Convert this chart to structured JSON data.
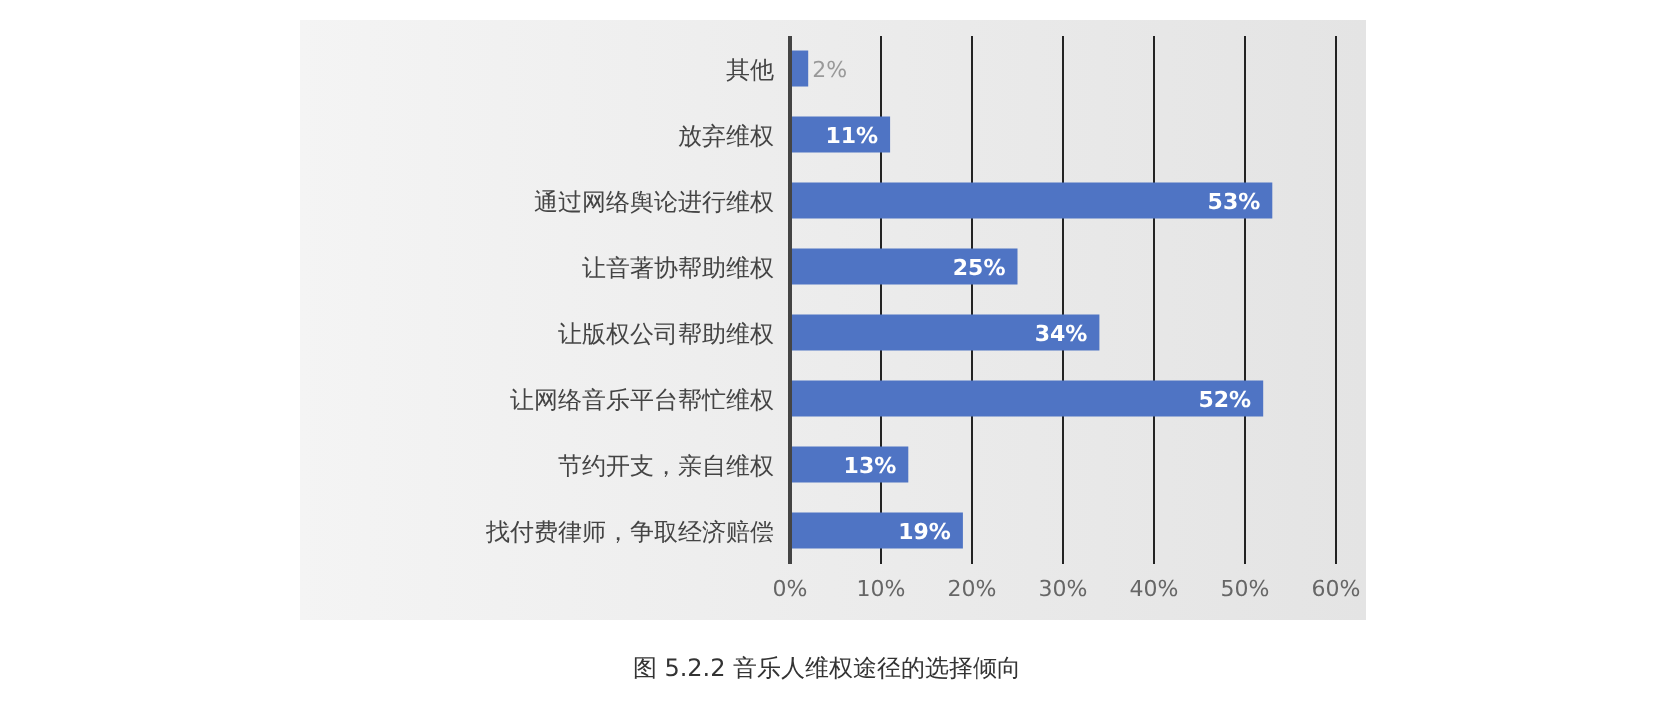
{
  "chart_data": {
    "type": "bar",
    "orientation": "horizontal",
    "title": "图 5.2.2  音乐人维权途径的选择倾向",
    "categories": [
      "其他",
      "放弃维权",
      "通过网络舆论进行维权",
      "让音著协帮助维权",
      "让版权公司帮助维权",
      "让网络音乐平台帮忙维权",
      "节约开支，亲自维权",
      "找付费律师，争取经济赔偿"
    ],
    "values": [
      2,
      11,
      53,
      25,
      34,
      52,
      13,
      19
    ],
    "value_labels": [
      "2%",
      "11%",
      "53%",
      "25%",
      "34%",
      "52%",
      "13%",
      "19%"
    ],
    "color": "#4f74c4",
    "xlim": [
      0,
      60
    ],
    "xticks": [
      {
        "value": 0,
        "label": "0%"
      },
      {
        "value": 10,
        "label": "10%"
      },
      {
        "value": 20,
        "label": "20%"
      },
      {
        "value": 30,
        "label": "30%"
      },
      {
        "value": 40,
        "label": "40%"
      },
      {
        "value": 50,
        "label": "50%"
      },
      {
        "value": 60,
        "label": "60%"
      }
    ],
    "grid": "x",
    "legend": false
  }
}
